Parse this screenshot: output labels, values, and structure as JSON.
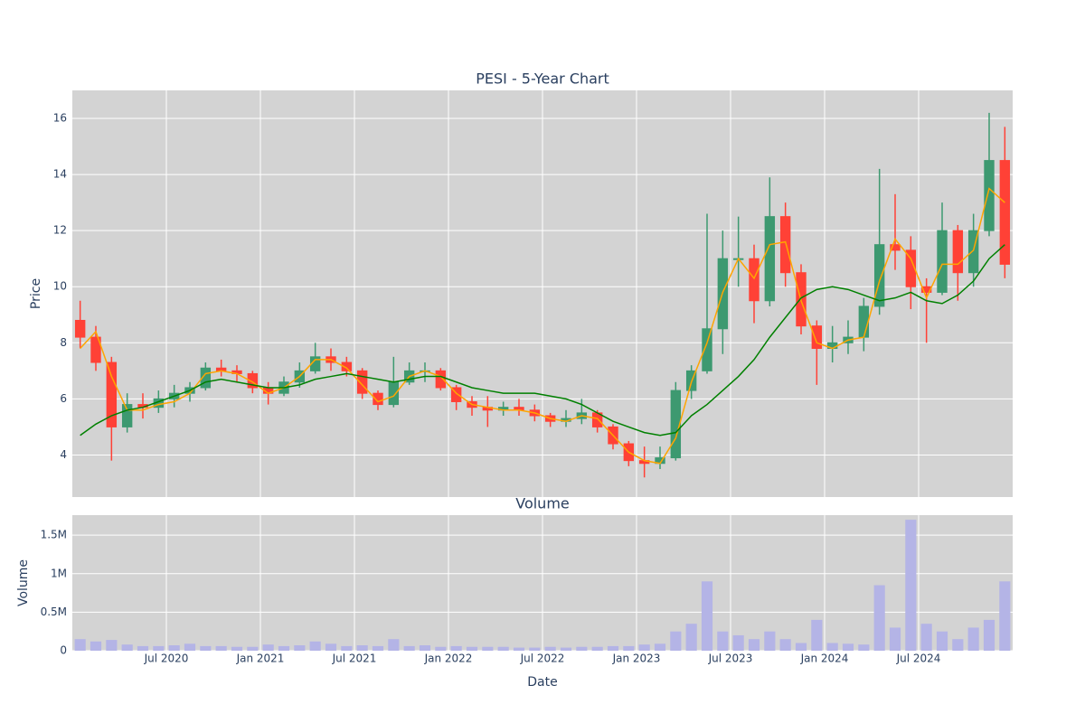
{
  "chart_data": [
    {
      "type": "candlestick",
      "title": "PESI - 5-Year Chart",
      "ylabel": "Price",
      "x": [
        "2020-01",
        "2020-02",
        "2020-03",
        "2020-04",
        "2020-05",
        "2020-06",
        "2020-07",
        "2020-08",
        "2020-09",
        "2020-10",
        "2020-11",
        "2020-12",
        "2021-01",
        "2021-02",
        "2021-03",
        "2021-04",
        "2021-05",
        "2021-06",
        "2021-07",
        "2021-08",
        "2021-09",
        "2021-10",
        "2021-11",
        "2021-12",
        "2022-01",
        "2022-02",
        "2022-03",
        "2022-04",
        "2022-05",
        "2022-06",
        "2022-07",
        "2022-08",
        "2022-09",
        "2022-10",
        "2022-11",
        "2022-12",
        "2023-01",
        "2023-02",
        "2023-03",
        "2023-04",
        "2023-05",
        "2023-06",
        "2023-07",
        "2023-08",
        "2023-09",
        "2023-10",
        "2023-11",
        "2023-12",
        "2024-01",
        "2024-02",
        "2024-03",
        "2024-04",
        "2024-05",
        "2024-06",
        "2024-07",
        "2024-08",
        "2024-09",
        "2024-10",
        "2024-11",
        "2024-12"
      ],
      "open": [
        8.8,
        8.2,
        7.3,
        5.0,
        5.8,
        5.7,
        6.0,
        6.2,
        6.4,
        7.1,
        7.0,
        6.9,
        6.4,
        6.2,
        6.6,
        7.0,
        7.5,
        7.3,
        7.0,
        6.2,
        5.8,
        6.6,
        7.0,
        7.0,
        6.4,
        5.9,
        5.7,
        5.6,
        5.7,
        5.6,
        5.4,
        5.2,
        5.3,
        5.5,
        5.0,
        4.4,
        3.8,
        3.7,
        3.9,
        6.3,
        7.0,
        8.5,
        11.0,
        11.0,
        9.5,
        12.5,
        10.5,
        8.6,
        7.8,
        8.0,
        8.2,
        9.3,
        11.5,
        11.3,
        10.0,
        9.8,
        12.0,
        10.5,
        12.0,
        14.5
      ],
      "high": [
        9.5,
        8.6,
        7.5,
        6.2,
        6.2,
        6.3,
        6.5,
        6.6,
        7.3,
        7.4,
        7.2,
        7.0,
        6.6,
        6.8,
        7.3,
        8.0,
        7.8,
        7.5,
        7.1,
        6.3,
        7.5,
        7.3,
        7.3,
        7.1,
        6.5,
        6.1,
        6.1,
        5.9,
        6.0,
        5.8,
        5.5,
        5.6,
        6.0,
        5.6,
        5.1,
        4.5,
        4.3,
        4.3,
        6.6,
        7.2,
        12.6,
        12.0,
        12.5,
        11.5,
        13.9,
        13.0,
        10.8,
        8.8,
        8.6,
        8.8,
        9.6,
        14.2,
        13.3,
        11.8,
        10.3,
        13.0,
        12.2,
        12.6,
        16.2,
        15.7
      ],
      "low": [
        7.8,
        7.0,
        3.8,
        4.8,
        5.3,
        5.5,
        5.7,
        5.9,
        6.3,
        6.8,
        6.6,
        6.2,
        5.8,
        6.1,
        6.4,
        6.9,
        7.0,
        6.8,
        6.0,
        5.6,
        5.7,
        6.5,
        6.6,
        6.3,
        5.6,
        5.4,
        5.0,
        5.4,
        5.4,
        5.2,
        5.0,
        5.0,
        5.1,
        4.8,
        4.2,
        3.6,
        3.2,
        3.5,
        3.8,
        6.0,
        6.9,
        7.6,
        10.0,
        8.7,
        9.3,
        10.0,
        8.3,
        6.5,
        7.3,
        7.6,
        7.7,
        9.0,
        10.6,
        9.2,
        8.0,
        9.7,
        9.5,
        10.0,
        11.8,
        10.3
      ],
      "close": [
        8.2,
        7.3,
        5.0,
        5.8,
        5.7,
        6.0,
        6.2,
        6.4,
        7.1,
        7.0,
        6.9,
        6.4,
        6.2,
        6.6,
        7.0,
        7.5,
        7.3,
        7.0,
        6.2,
        5.8,
        6.6,
        7.0,
        7.0,
        6.4,
        5.9,
        5.7,
        5.6,
        5.7,
        5.6,
        5.4,
        5.2,
        5.3,
        5.5,
        5.0,
        4.4,
        3.8,
        3.7,
        3.9,
        6.3,
        7.0,
        8.5,
        11.0,
        11.0,
        9.5,
        12.5,
        10.5,
        8.6,
        7.8,
        8.0,
        8.2,
        9.3,
        11.5,
        11.3,
        10.0,
        9.8,
        12.0,
        10.5,
        12.0,
        14.5,
        10.8
      ],
      "increasing_color": "#3d9970",
      "decreasing_color": "#ff4136",
      "lines": [
        {
          "color": "#ffa500",
          "values": [
            7.8,
            8.4,
            6.8,
            5.6,
            5.6,
            5.8,
            5.9,
            6.2,
            6.9,
            7.0,
            6.9,
            6.6,
            6.2,
            6.4,
            6.8,
            7.4,
            7.4,
            7.1,
            6.5,
            5.9,
            6.1,
            6.8,
            7.0,
            6.8,
            6.2,
            5.8,
            5.7,
            5.6,
            5.6,
            5.5,
            5.3,
            5.2,
            5.4,
            5.3,
            4.7,
            4.1,
            3.8,
            3.7,
            4.6,
            6.6,
            8.0,
            9.8,
            11.0,
            10.3,
            11.5,
            11.6,
            9.5,
            8.0,
            7.8,
            8.1,
            8.2,
            10.2,
            11.7,
            11.0,
            9.6,
            10.8,
            10.8,
            11.3,
            13.5,
            13.0
          ]
        },
        {
          "color": "#008000",
          "values": [
            4.7,
            5.1,
            5.4,
            5.6,
            5.7,
            5.9,
            6.1,
            6.3,
            6.6,
            6.7,
            6.6,
            6.5,
            6.4,
            6.4,
            6.5,
            6.7,
            6.8,
            6.9,
            6.8,
            6.7,
            6.6,
            6.7,
            6.8,
            6.8,
            6.6,
            6.4,
            6.3,
            6.2,
            6.2,
            6.2,
            6.1,
            6.0,
            5.8,
            5.5,
            5.2,
            5.0,
            4.8,
            4.7,
            4.8,
            5.4,
            5.8,
            6.3,
            6.8,
            7.4,
            8.2,
            8.9,
            9.6,
            9.9,
            10.0,
            9.9,
            9.7,
            9.5,
            9.6,
            9.8,
            9.5,
            9.4,
            9.7,
            10.2,
            11.0,
            11.5
          ]
        }
      ],
      "xlim": [
        "2020-01",
        "2025-01"
      ],
      "xticks": [
        {
          "value": "2020-07",
          "label": "Jul 2020"
        },
        {
          "value": "2021-01",
          "label": "Jan 2021"
        },
        {
          "value": "2021-07",
          "label": "Jul 2021"
        },
        {
          "value": "2022-01",
          "label": "Jan 2022"
        },
        {
          "value": "2022-07",
          "label": "Jul 2022"
        },
        {
          "value": "2023-01",
          "label": "Jan 2023"
        },
        {
          "value": "2023-07",
          "label": "Jul 2023"
        },
        {
          "value": "2024-01",
          "label": "Jan 2024"
        },
        {
          "value": "2024-07",
          "label": "Jul 2024"
        }
      ],
      "ylim": [
        2.5,
        17
      ],
      "yticks": [
        4,
        6,
        8,
        10,
        12,
        14,
        16
      ],
      "grid": true
    },
    {
      "type": "bar",
      "title": "Volume",
      "ylabel": "Volume",
      "xlabel": "Date",
      "color": "#b4b4e6",
      "x": [
        "2020-01",
        "2020-02",
        "2020-03",
        "2020-04",
        "2020-05",
        "2020-06",
        "2020-07",
        "2020-08",
        "2020-09",
        "2020-10",
        "2020-11",
        "2020-12",
        "2021-01",
        "2021-02",
        "2021-03",
        "2021-04",
        "2021-05",
        "2021-06",
        "2021-07",
        "2021-08",
        "2021-09",
        "2021-10",
        "2021-11",
        "2021-12",
        "2022-01",
        "2022-02",
        "2022-03",
        "2022-04",
        "2022-05",
        "2022-06",
        "2022-07",
        "2022-08",
        "2022-09",
        "2022-10",
        "2022-11",
        "2022-12",
        "2023-01",
        "2023-02",
        "2023-03",
        "2023-04",
        "2023-05",
        "2023-06",
        "2023-07",
        "2023-08",
        "2023-09",
        "2023-10",
        "2023-11",
        "2023-12",
        "2024-01",
        "2024-02",
        "2024-03",
        "2024-04",
        "2024-05",
        "2024-06",
        "2024-07",
        "2024-08",
        "2024-09",
        "2024-10",
        "2024-11",
        "2024-12"
      ],
      "values": [
        150000,
        120000,
        140000,
        80000,
        60000,
        60000,
        70000,
        90000,
        60000,
        60000,
        50000,
        50000,
        80000,
        60000,
        70000,
        120000,
        90000,
        60000,
        70000,
        60000,
        150000,
        60000,
        70000,
        50000,
        60000,
        50000,
        50000,
        50000,
        40000,
        40000,
        50000,
        40000,
        50000,
        50000,
        60000,
        60000,
        80000,
        90000,
        250000,
        350000,
        900000,
        250000,
        200000,
        150000,
        250000,
        150000,
        100000,
        400000,
        100000,
        90000,
        80000,
        850000,
        300000,
        1700000,
        350000,
        250000,
        150000,
        300000,
        400000,
        900000
      ],
      "xlim": [
        "2020-01",
        "2025-01"
      ],
      "xticks": [
        {
          "value": "2020-07",
          "label": "Jul 2020"
        },
        {
          "value": "2021-01",
          "label": "Jan 2021"
        },
        {
          "value": "2021-07",
          "label": "Jul 2021"
        },
        {
          "value": "2022-01",
          "label": "Jan 2022"
        },
        {
          "value": "2022-07",
          "label": "Jul 2022"
        },
        {
          "value": "2023-01",
          "label": "Jan 2023"
        },
        {
          "value": "2023-07",
          "label": "Jul 2023"
        },
        {
          "value": "2024-01",
          "label": "Jan 2024"
        },
        {
          "value": "2024-07",
          "label": "Jul 2024"
        }
      ],
      "ylim": [
        0,
        1760000
      ],
      "yticks": [
        0,
        {
          "value": 500000,
          "label": "0.5M"
        },
        {
          "value": 1000000,
          "label": "1M"
        },
        {
          "value": 1500000,
          "label": "1.5M"
        }
      ],
      "grid": true
    }
  ]
}
